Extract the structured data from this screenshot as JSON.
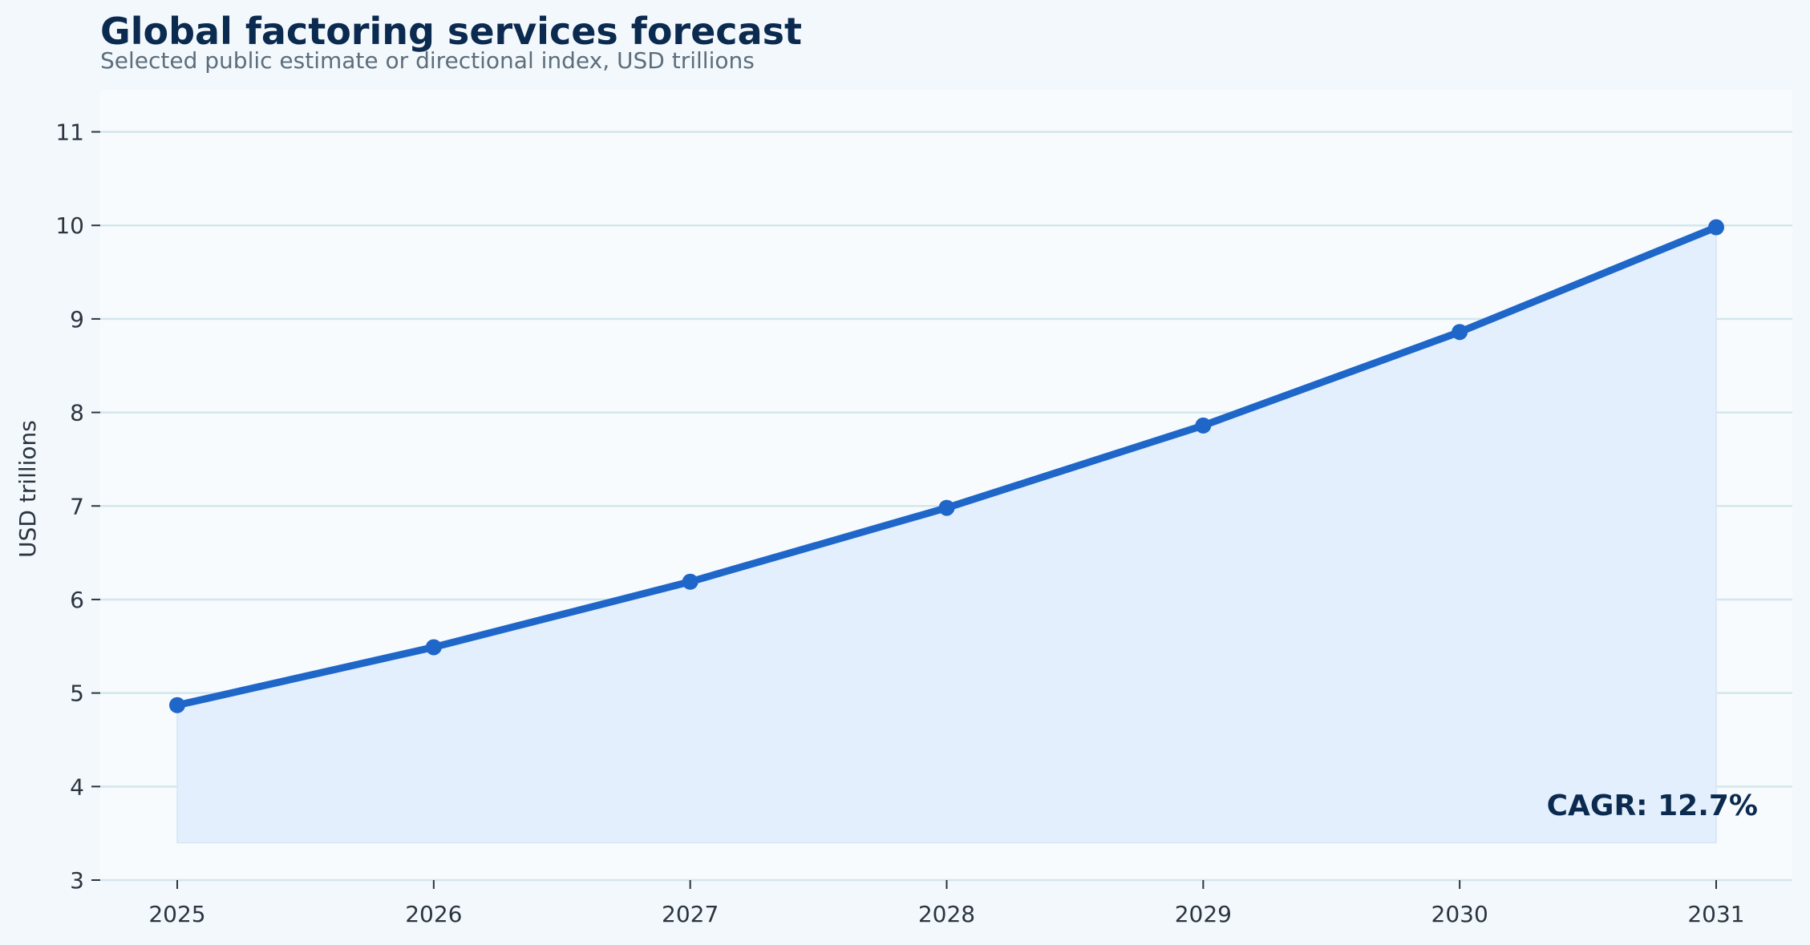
{
  "chart_data": {
    "type": "area",
    "title": "Global factoring services forecast",
    "subtitle": "Selected public estimate or directional index, USD trillions",
    "ylabel": "USD trillions",
    "xlabel": "",
    "x": [
      "2025",
      "2026",
      "2027",
      "2028",
      "2029",
      "2030",
      "2031"
    ],
    "series": [
      {
        "values": [
          4.87,
          5.49,
          6.19,
          6.98,
          7.86,
          8.86,
          9.98
        ]
      }
    ],
    "y_ticks": [
      3,
      4,
      5,
      6,
      7,
      8,
      9,
      10,
      11
    ],
    "ylim": [
      3,
      11.45
    ],
    "area_baseline": 3.4,
    "grid": "horizontal",
    "legend": "none",
    "annotation": "CAGR: 12.7%",
    "colors": {
      "line": "#1f66c9",
      "area": "#e3effc",
      "grid": "#d3e7ec",
      "plot_bg": "#f7fbfe",
      "page_bg": "#f3f8fc"
    }
  }
}
